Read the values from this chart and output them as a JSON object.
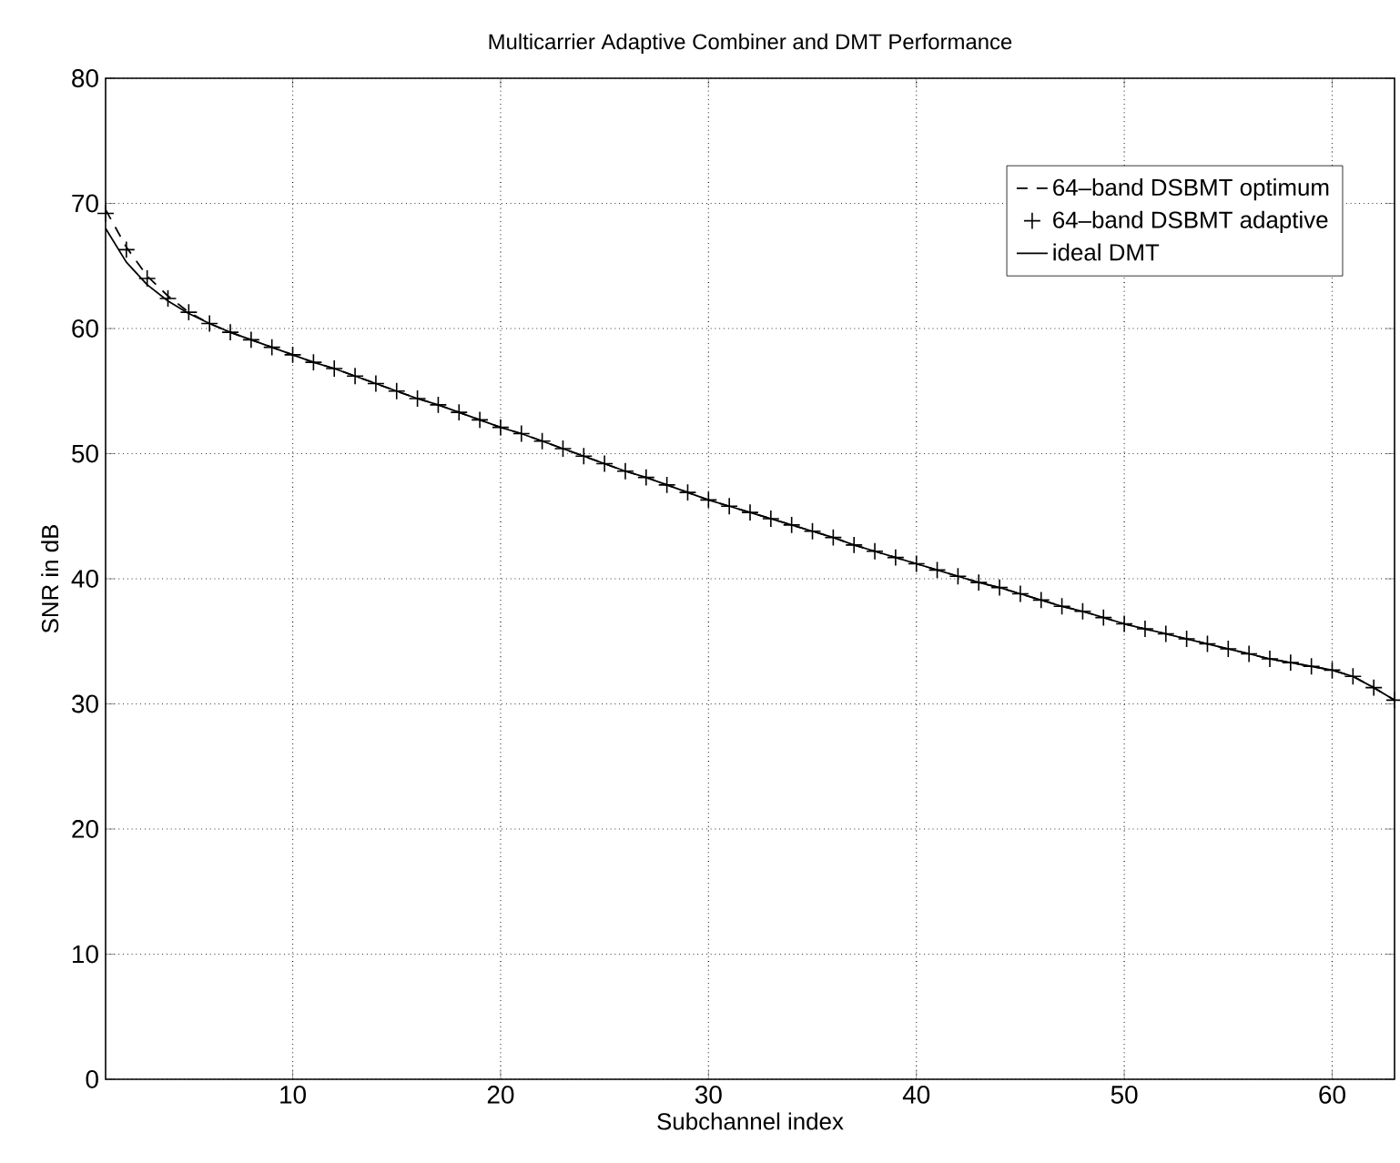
{
  "chart_data": {
    "type": "line",
    "title": "Multicarrier Adaptive Combiner and DMT Performance",
    "xlabel": "Subchannel index",
    "ylabel": "SNR in dB",
    "x": [
      1,
      2,
      3,
      4,
      5,
      6,
      7,
      8,
      9,
      10,
      11,
      12,
      13,
      14,
      15,
      16,
      17,
      18,
      19,
      20,
      21,
      22,
      23,
      24,
      25,
      26,
      27,
      28,
      29,
      30,
      31,
      32,
      33,
      34,
      35,
      36,
      37,
      38,
      39,
      40,
      41,
      42,
      43,
      44,
      45,
      46,
      47,
      48,
      49,
      50,
      51,
      52,
      53,
      54,
      55,
      56,
      57,
      58,
      59,
      60,
      61,
      62,
      63
    ],
    "series": [
      {
        "name": "64–band DSBMT optimum",
        "line_style": "dashed",
        "color": "#000000",
        "values": [
          69.5,
          66.5,
          64.2,
          62.6,
          61.3,
          60.4,
          59.7,
          59.1,
          58.5,
          57.9,
          57.3,
          56.8,
          56.2,
          55.6,
          55.0,
          54.4,
          53.9,
          53.3,
          52.7,
          52.1,
          51.6,
          51.0,
          50.4,
          49.8,
          49.2,
          48.6,
          48.1,
          47.5,
          46.9,
          46.3,
          45.8,
          45.3,
          44.8,
          44.3,
          43.8,
          43.3,
          42.7,
          42.2,
          41.7,
          41.2,
          40.7,
          40.2,
          39.7,
          39.3,
          38.8,
          38.3,
          37.8,
          37.4,
          36.9,
          36.4,
          36.0,
          35.6,
          35.2,
          34.8,
          34.4,
          34.0,
          33.6,
          33.3,
          33.0,
          32.7,
          32.2,
          31.3,
          30.3
        ]
      },
      {
        "name": "64–band DSBMT adaptive",
        "type": "scatter",
        "marker": "cross",
        "color": "#000000",
        "values": [
          69.2,
          66.3,
          64.0,
          62.4,
          61.3,
          60.4,
          59.7,
          59.1,
          58.5,
          57.9,
          57.3,
          56.8,
          56.2,
          55.6,
          55.0,
          54.4,
          53.9,
          53.3,
          52.7,
          52.1,
          51.6,
          51.0,
          50.4,
          49.8,
          49.2,
          48.6,
          48.1,
          47.5,
          46.9,
          46.3,
          45.8,
          45.3,
          44.8,
          44.3,
          43.8,
          43.3,
          42.7,
          42.2,
          41.7,
          41.2,
          40.7,
          40.2,
          39.7,
          39.3,
          38.8,
          38.3,
          37.8,
          37.4,
          36.9,
          36.4,
          36.0,
          35.6,
          35.2,
          34.8,
          34.4,
          34.0,
          33.6,
          33.3,
          33.0,
          32.7,
          32.2,
          31.3,
          30.3
        ]
      },
      {
        "name": "ideal DMT",
        "line_style": "solid",
        "color": "#000000",
        "values": [
          68.0,
          65.3,
          63.5,
          62.2,
          61.2,
          60.4,
          59.7,
          59.1,
          58.5,
          57.9,
          57.3,
          56.8,
          56.2,
          55.6,
          55.0,
          54.4,
          53.9,
          53.3,
          52.7,
          52.1,
          51.6,
          51.0,
          50.4,
          49.8,
          49.2,
          48.6,
          48.1,
          47.5,
          46.9,
          46.3,
          45.8,
          45.3,
          44.8,
          44.3,
          43.8,
          43.3,
          42.7,
          42.2,
          41.7,
          41.2,
          40.7,
          40.2,
          39.7,
          39.3,
          38.8,
          38.3,
          37.8,
          37.4,
          36.9,
          36.4,
          36.0,
          35.6,
          35.2,
          34.8,
          34.4,
          34.0,
          33.6,
          33.3,
          33.0,
          32.7,
          32.2,
          31.3,
          30.3
        ]
      }
    ],
    "xlim": [
      1,
      63
    ],
    "ylim": [
      0,
      80
    ],
    "xticks": [
      10,
      20,
      30,
      40,
      50,
      60
    ],
    "yticks": [
      0,
      10,
      20,
      30,
      40,
      50,
      60,
      70,
      80
    ],
    "grid": true,
    "legend": "top right"
  }
}
